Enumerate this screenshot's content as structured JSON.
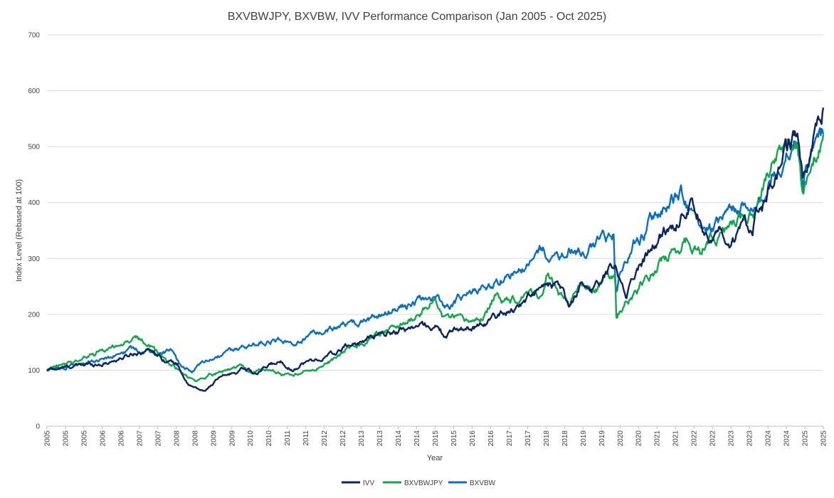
{
  "chart_data": {
    "type": "line",
    "title": "BXVBWJPY, BXVBW, IVV Performance Comparison (Jan 2005 - Oct 2025)",
    "xlabel": "Year",
    "ylabel": "Index Level (Rebased at 100)",
    "ylim": [
      0,
      700
    ],
    "yticks": [
      0,
      100,
      200,
      300,
      400,
      500,
      600,
      700
    ],
    "xlim": [
      2005.0,
      2025.8
    ],
    "xtick_labels": [
      "2005",
      "2005",
      "2005",
      "2006",
      "2006",
      "2007",
      "2007",
      "2008",
      "2008",
      "2009",
      "2009",
      "2010",
      "2010",
      "2011",
      "2011",
      "2012",
      "2012",
      "2013",
      "2013",
      "2014",
      "2014",
      "2015",
      "2015",
      "2016",
      "2016",
      "2017",
      "2017",
      "2018",
      "2018",
      "2019",
      "2019",
      "2020",
      "2020",
      "2021",
      "2021",
      "2022",
      "2022",
      "2023",
      "2023",
      "2024",
      "2024",
      "2025",
      "2025"
    ],
    "grid": true,
    "legend_position": "bottom-center",
    "series": [
      {
        "name": "IVV",
        "color": "#0c2461",
        "x": [
          2005.0,
          2005.5,
          2006.0,
          2006.5,
          2007.0,
          2007.4,
          2007.8,
          2008.2,
          2008.5,
          2008.8,
          2009.2,
          2009.6,
          2010.0,
          2010.3,
          2010.6,
          2011.0,
          2011.3,
          2011.6,
          2011.8,
          2012.0,
          2012.4,
          2012.8,
          2013.0,
          2013.5,
          2014.0,
          2014.5,
          2015.0,
          2015.4,
          2015.7,
          2016.0,
          2016.5,
          2017.0,
          2017.5,
          2018.0,
          2018.3,
          2018.7,
          2019.0,
          2019.3,
          2019.6,
          2019.9,
          2020.0,
          2020.25,
          2020.5,
          2020.8,
          2021.0,
          2021.5,
          2021.9,
          2022.2,
          2022.5,
          2022.8,
          2023.0,
          2023.3,
          2023.6,
          2023.9,
          2024.0,
          2024.2,
          2024.5,
          2024.8,
          2025.0,
          2025.1,
          2025.25,
          2025.4,
          2025.6,
          2025.8
        ],
        "values": [
          100,
          105,
          110,
          112,
          122,
          132,
          138,
          118,
          110,
          72,
          62,
          85,
          95,
          105,
          92,
          110,
          115,
          100,
          112,
          115,
          122,
          132,
          142,
          152,
          165,
          172,
          180,
          178,
          160,
          175,
          178,
          195,
          210,
          235,
          245,
          252,
          212,
          250,
          248,
          262,
          275,
          290,
          232,
          278,
          300,
          345,
          365,
          405,
          370,
          332,
          345,
          305,
          352,
          358,
          395,
          398,
          442,
          488,
          508,
          525,
          430,
          475,
          540,
          575
        ]
      },
      {
        "name": "BXVBWJPY",
        "color": "#14a64a",
        "x": [
          2005.0,
          2005.5,
          2006.0,
          2006.5,
          2007.0,
          2007.4,
          2007.8,
          2008.0,
          2008.3,
          2008.7,
          2009.0,
          2009.4,
          2009.8,
          2010.2,
          2010.5,
          2010.9,
          2011.2,
          2011.6,
          2012.0,
          2012.5,
          2013.0,
          2013.5,
          2014.0,
          2014.5,
          2015.0,
          2015.4,
          2015.6,
          2015.9,
          2016.3,
          2016.7,
          2017.0,
          2017.3,
          2017.6,
          2017.9,
          2018.2,
          2018.4,
          2018.7,
          2019.0,
          2019.3,
          2019.7,
          2020.0,
          2020.22,
          2020.25,
          2020.5,
          2021.0,
          2021.5,
          2022.0,
          2022.2,
          2022.5,
          2022.8,
          2023.0,
          2023.4,
          2023.8,
          2024.0,
          2024.3,
          2024.6,
          2024.9,
          2025.1,
          2025.25,
          2025.4,
          2025.6,
          2025.8
        ],
        "values": [
          100,
          110,
          122,
          135,
          148,
          158,
          140,
          130,
          112,
          90,
          80,
          93,
          100,
          108,
          95,
          102,
          95,
          90,
          100,
          110,
          135,
          150,
          165,
          180,
          205,
          225,
          195,
          190,
          185,
          195,
          230,
          228,
          230,
          245,
          235,
          270,
          240,
          220,
          255,
          245,
          265,
          275,
          195,
          222,
          255,
          295,
          320,
          335,
          315,
          330,
          345,
          365,
          375,
          395,
          440,
          475,
          510,
          505,
          410,
          445,
          480,
          510
        ]
      },
      {
        "name": "BXVBW",
        "color": "#0a6fbf",
        "x": [
          2005.0,
          2005.5,
          2006.0,
          2006.5,
          2007.0,
          2007.4,
          2007.8,
          2008.0,
          2008.3,
          2008.6,
          2008.9,
          2009.2,
          2009.6,
          2010.0,
          2010.5,
          2011.0,
          2011.3,
          2011.6,
          2012.0,
          2012.5,
          2013.0,
          2013.5,
          2014.0,
          2014.5,
          2015.0,
          2015.4,
          2015.7,
          2016.0,
          2016.5,
          2017.0,
          2017.5,
          2018.0,
          2018.3,
          2018.7,
          2019.0,
          2019.4,
          2019.8,
          2020.1,
          2020.18,
          2020.24,
          2020.45,
          2020.8,
          2021.0,
          2021.4,
          2021.8,
          2022.0,
          2022.3,
          2022.5,
          2022.8,
          2023.0,
          2023.4,
          2023.8,
          2024.0,
          2024.3,
          2024.6,
          2024.9,
          2025.1,
          2025.25,
          2025.4,
          2025.6,
          2025.8
        ],
        "values": [
          100,
          106,
          115,
          120,
          130,
          138,
          132,
          128,
          138,
          105,
          98,
          112,
          125,
          135,
          145,
          155,
          160,
          142,
          162,
          170,
          180,
          188,
          200,
          212,
          222,
          230,
          212,
          228,
          240,
          258,
          272,
          290,
          318,
          292,
          325,
          310,
          330,
          335,
          340,
          232,
          298,
          330,
          350,
          385,
          405,
          418,
          380,
          362,
          355,
          370,
          385,
          395,
          400,
          440,
          470,
          500,
          520,
          425,
          475,
          500,
          520
        ]
      }
    ]
  }
}
